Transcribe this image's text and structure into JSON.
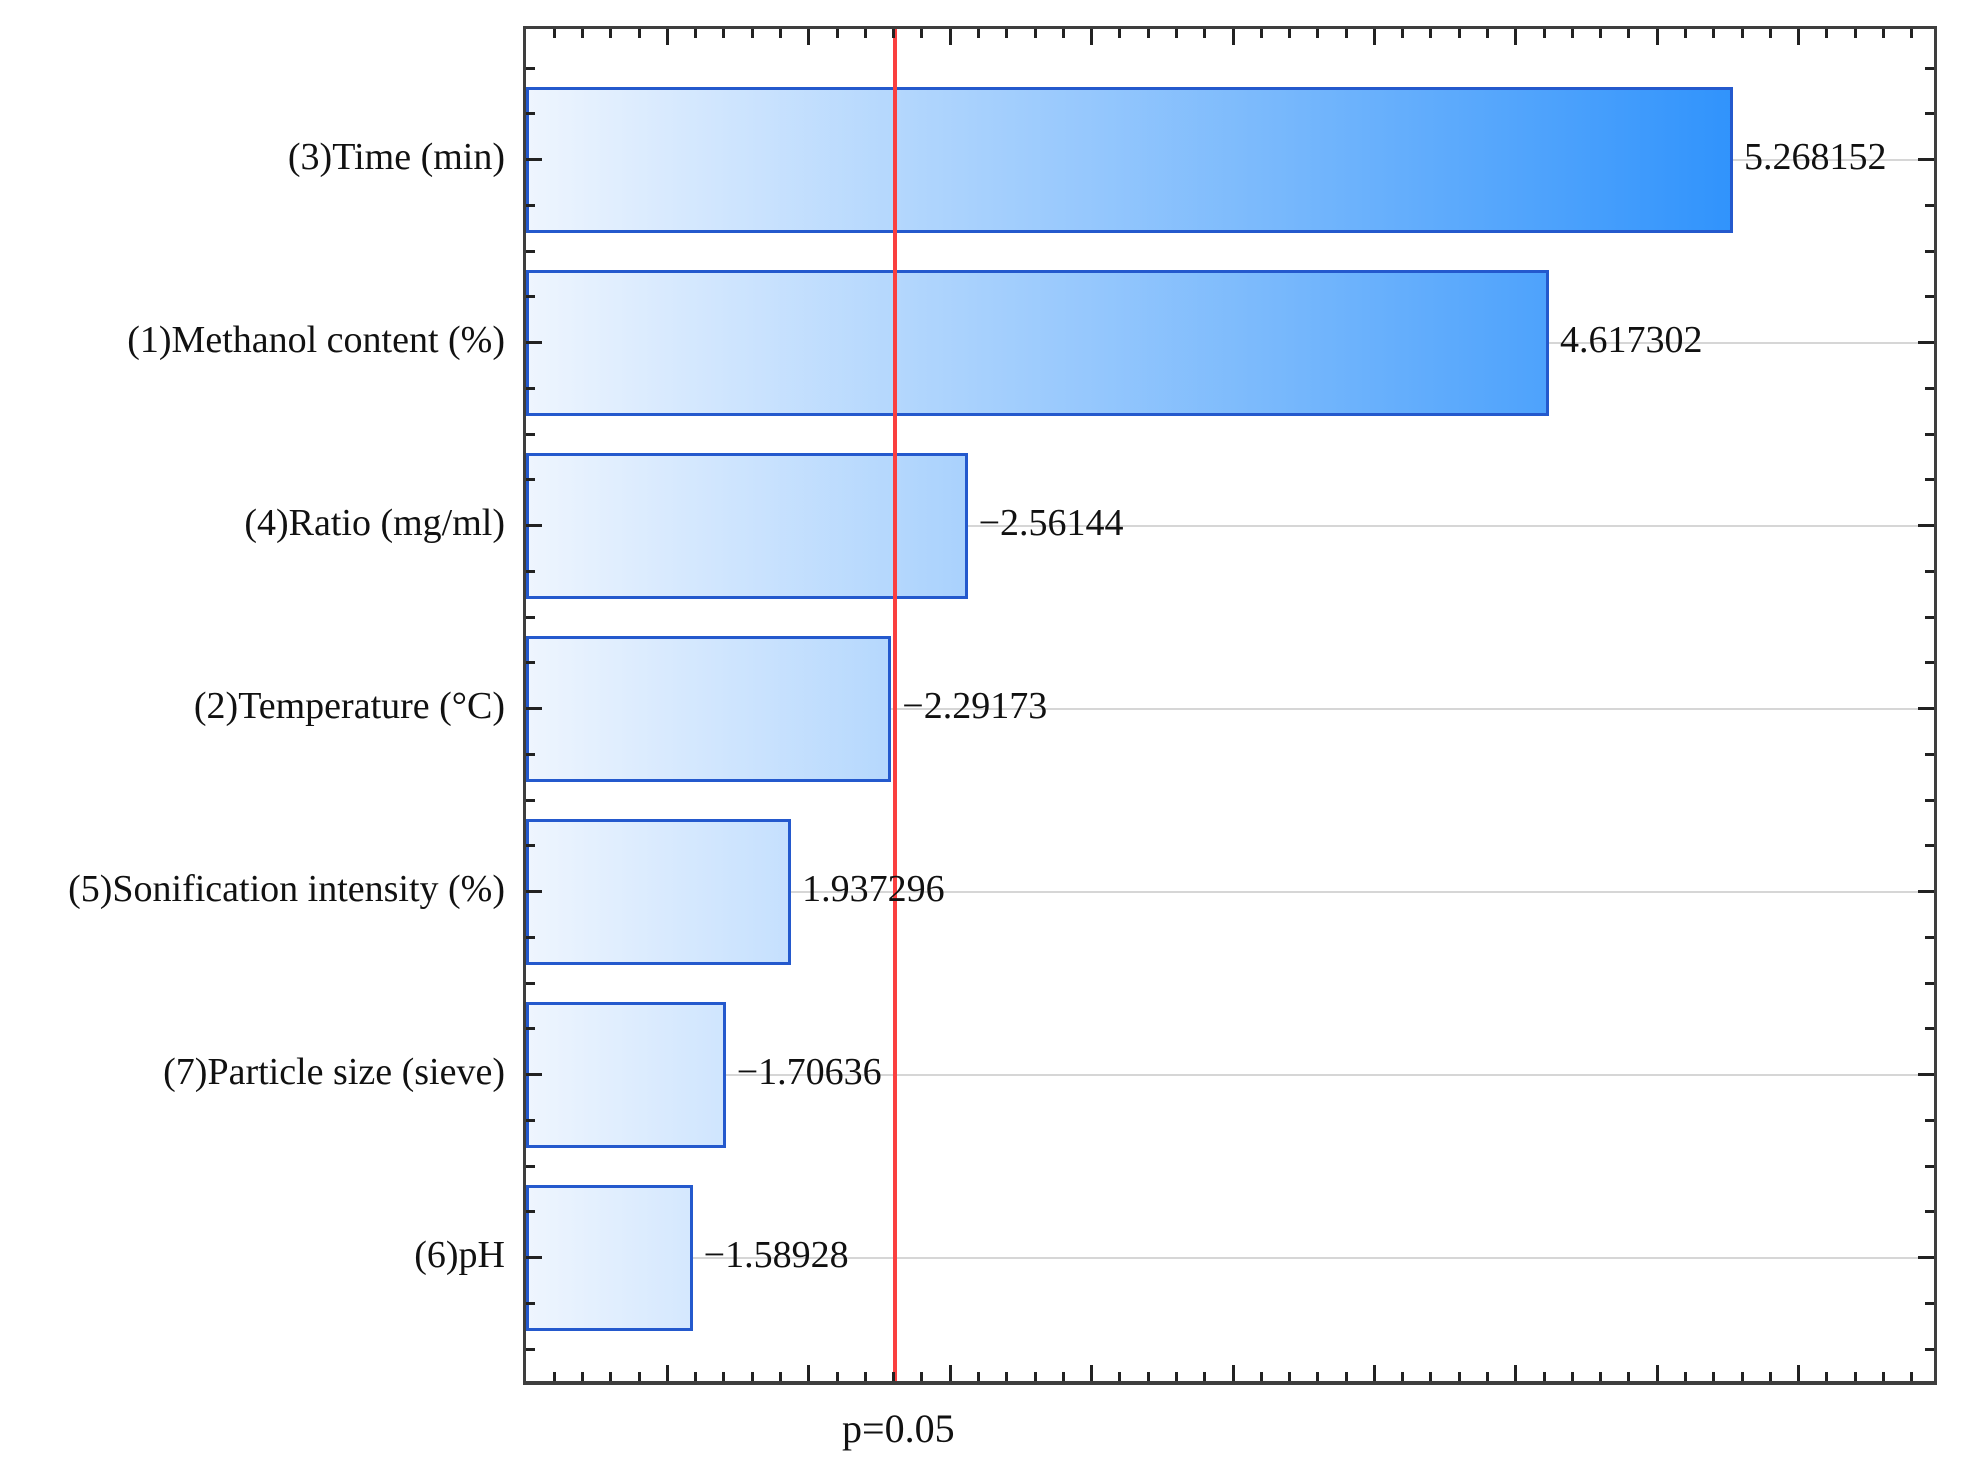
{
  "chart_data": {
    "type": "bar",
    "orientation": "horizontal",
    "title": "",
    "xlabel": "",
    "ylabel": "",
    "categories": [
      "(3)Time (min)",
      "(1)Methanol content (%)",
      "(4)Ratio (mg/ml)",
      "(2)Temperature (°C)",
      "(5)Sonification intensity (%)",
      "(7)Particle size (sieve)",
      "(6)pH"
    ],
    "values": [
      5.268152,
      4.617302,
      -2.56144,
      -2.29173,
      1.937296,
      -1.70636,
      -1.58928
    ],
    "value_labels": [
      "5.268152",
      "4.617302",
      "−2.56144",
      "−2.29173",
      "1.937296",
      "−1.70636",
      "−1.58928"
    ],
    "x_axis": {
      "min": 1.0,
      "max": 6.0,
      "minor_tick": 0.1,
      "major_tick": 0.5
    },
    "y_minor_divisions_per_category": 4,
    "grid": "horizontal gridlines at category centers",
    "legend": "none",
    "significance_line": {
      "value": 2.306,
      "label": "p=0.05"
    },
    "colors": {
      "bar_gradient_start": "#eef5fe",
      "bar_gradient_end": "#0f82fb",
      "bar_border": "#2459cd",
      "significance_line": "#fa3f3f",
      "gridline": "#d6d6d6",
      "axis_border": "#3e3e3e",
      "text": "#111111",
      "background": "#ffffff"
    }
  }
}
